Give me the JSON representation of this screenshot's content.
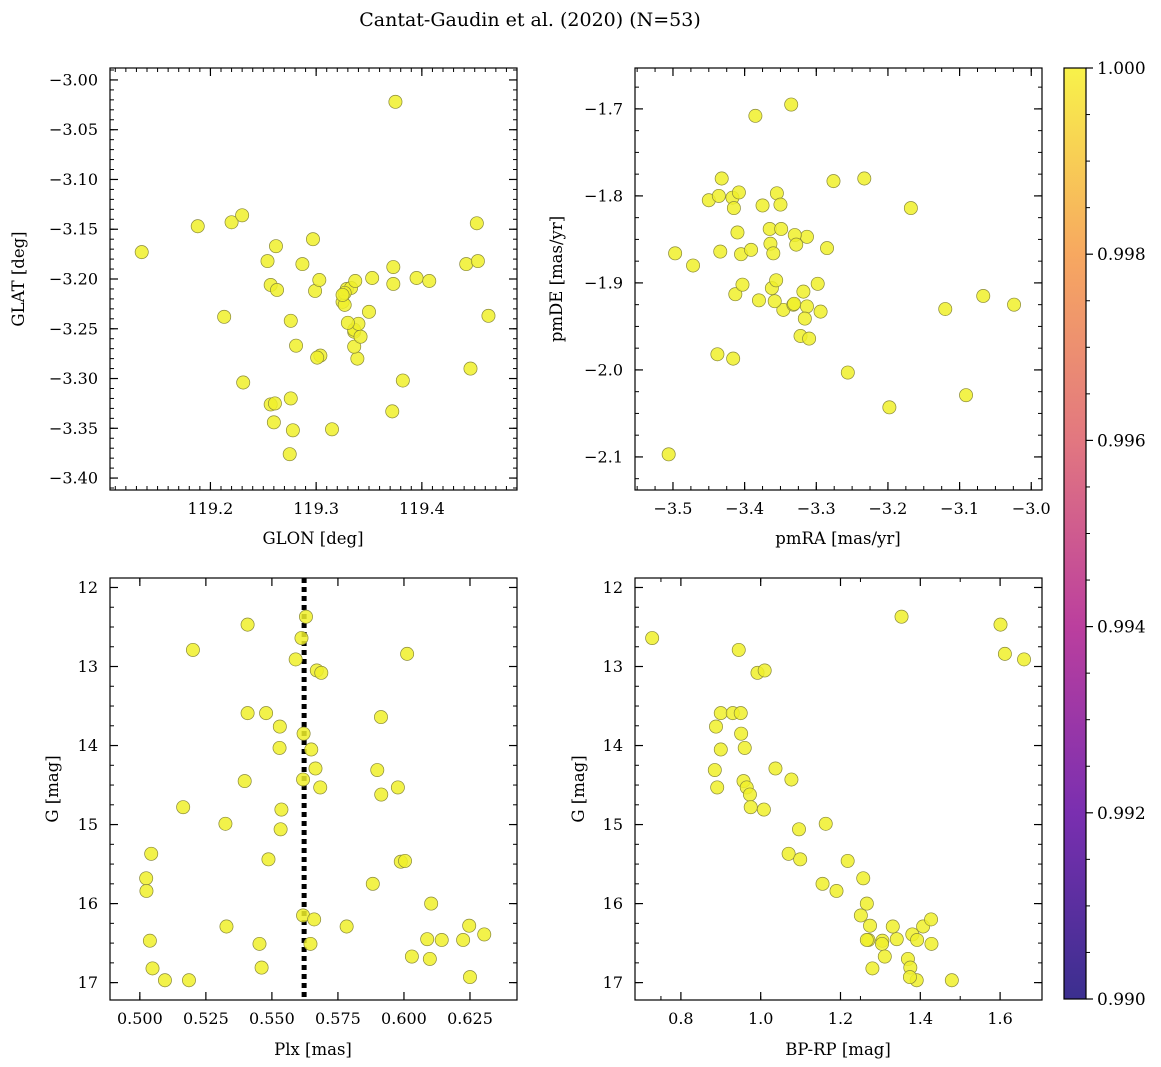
{
  "figure": {
    "title": "Cantat-Gaudin et al. (2020) (N=53)"
  },
  "colorbar": {
    "min": 0.99,
    "max": 1.0,
    "tick_labels": [
      "0.990",
      "0.992",
      "0.994",
      "0.996",
      "0.998",
      "1.000"
    ],
    "colormap": "plasma",
    "colors": [
      "#3b2f8f",
      "#7a2fb0",
      "#bb3f9e",
      "#e27780",
      "#f7a860",
      "#f8f24a"
    ]
  },
  "marker": {
    "fill": "#f0f02a",
    "edge": "#8a8a3a",
    "opacity": 0.85
  },
  "chart_data": [
    {
      "type": "scatter",
      "panel": "top-left",
      "xlabel": "GLON [deg]",
      "ylabel": "GLAT [deg]",
      "xlim": [
        119.105,
        119.49
      ],
      "ylim": [
        -3.412,
        -2.988
      ],
      "x_ticks": [
        119.2,
        119.3,
        119.4
      ],
      "x_tick_labels": [
        "119.2",
        "119.3",
        "119.4"
      ],
      "y_ticks": [
        -3.0,
        -3.05,
        -3.1,
        -3.15,
        -3.2,
        -3.25,
        -3.3,
        -3.35,
        -3.4
      ],
      "y_tick_labels": [
        "−3.00",
        "−3.05",
        "−3.10",
        "−3.15",
        "−3.20",
        "−3.25",
        "−3.30",
        "−3.35",
        "−3.40"
      ],
      "x": [
        119.135,
        119.188,
        119.22,
        119.23,
        119.262,
        119.213,
        119.254,
        119.257,
        119.263,
        119.297,
        119.287,
        119.299,
        119.325,
        119.329,
        119.333,
        119.337,
        119.327,
        119.336,
        119.353,
        119.373,
        119.373,
        119.395,
        119.407,
        119.442,
        119.453,
        119.452,
        119.463,
        119.446,
        119.375,
        119.382,
        119.372,
        119.315,
        119.304,
        119.301,
        119.339,
        119.336,
        119.336,
        119.342,
        119.34,
        119.35,
        119.33,
        119.303,
        119.276,
        119.281,
        119.276,
        119.26,
        119.257,
        119.231,
        119.278,
        119.275,
        119.327,
        119.261,
        119.325
      ],
      "y": [
        -3.173,
        -3.147,
        -3.143,
        -3.136,
        -3.167,
        -3.238,
        -3.182,
        -3.206,
        -3.211,
        -3.16,
        -3.185,
        -3.212,
        -3.223,
        -3.21,
        -3.209,
        -3.202,
        -3.226,
        -3.253,
        -3.199,
        -3.205,
        -3.188,
        -3.199,
        -3.202,
        -3.185,
        -3.182,
        -3.144,
        -3.237,
        -3.29,
        -3.022,
        -3.302,
        -3.333,
        -3.351,
        -3.277,
        -3.279,
        -3.28,
        -3.268,
        -3.251,
        -3.258,
        -3.245,
        -3.233,
        -3.244,
        -3.201,
        -3.242,
        -3.267,
        -3.32,
        -3.344,
        -3.326,
        -3.304,
        -3.352,
        -3.376,
        -3.214,
        -3.325,
        -3.216
      ]
    },
    {
      "type": "scatter",
      "panel": "top-right",
      "xlabel": "pmRA [mas/yr]",
      "ylabel": "pmDE [mas/yr]",
      "xlim": [
        -3.553,
        -2.985
      ],
      "ylim": [
        -2.138,
        -1.653
      ],
      "x_ticks": [
        -3.5,
        -3.4,
        -3.3,
        -3.2,
        -3.1,
        -3.0
      ],
      "x_tick_labels": [
        "−3.5",
        "−3.4",
        "−3.3",
        "−3.2",
        "−3.1",
        "−3.0"
      ],
      "y_ticks": [
        -1.7,
        -1.8,
        -1.9,
        -2.0,
        -2.1
      ],
      "y_tick_labels": [
        "−1.7",
        "−1.8",
        "−1.9",
        "−2.0",
        "−2.1"
      ],
      "x": [
        -3.385,
        -3.335,
        -3.233,
        -3.276,
        -3.168,
        -3.432,
        -3.45,
        -3.436,
        -3.417,
        -3.408,
        -3.355,
        -3.415,
        -3.35,
        -3.313,
        -3.41,
        -3.365,
        -3.33,
        -3.364,
        -3.328,
        -3.349,
        -3.36,
        -3.405,
        -3.391,
        -3.285,
        -3.497,
        -3.472,
        -3.434,
        -3.38,
        -3.362,
        -3.413,
        -3.318,
        -3.356,
        -3.346,
        -3.332,
        -3.313,
        -3.298,
        -3.294,
        -3.358,
        -3.316,
        -3.322,
        -3.12,
        -3.067,
        -3.024,
        -3.091,
        -3.438,
        -3.416,
        -3.256,
        -3.198,
        -3.506,
        -3.31,
        -3.403,
        -3.331,
        -3.375
      ],
      "y": [
        -1.708,
        -1.695,
        -1.78,
        -1.783,
        -1.814,
        -1.78,
        -1.805,
        -1.8,
        -1.802,
        -1.796,
        -1.797,
        -1.814,
        -1.81,
        -1.847,
        -1.842,
        -1.838,
        -1.845,
        -1.855,
        -1.856,
        -1.838,
        -1.866,
        -1.867,
        -1.862,
        -1.86,
        -1.866,
        -1.88,
        -1.864,
        -1.92,
        -1.906,
        -1.913,
        -1.91,
        -1.897,
        -1.931,
        -1.925,
        -1.927,
        -1.901,
        -1.933,
        -1.921,
        -1.941,
        -1.961,
        -1.93,
        -1.915,
        -1.925,
        -2.029,
        -1.982,
        -1.987,
        -2.003,
        -2.043,
        -2.097,
        -1.964,
        -1.902,
        -1.924,
        -1.811
      ]
    },
    {
      "type": "scatter",
      "panel": "bottom-left",
      "xlabel": "Plx [mas]",
      "ylabel": "G [mag]",
      "xlim": [
        0.4887,
        0.6428
      ],
      "ylim": [
        17.22,
        11.88
      ],
      "y_inverted": true,
      "vline": {
        "x": 0.5622,
        "style": "dotted"
      },
      "x_ticks": [
        0.5,
        0.525,
        0.55,
        0.575,
        0.6,
        0.625
      ],
      "x_tick_labels": [
        "0.500",
        "0.525",
        "0.550",
        "0.575",
        "0.600",
        "0.625"
      ],
      "y_ticks": [
        12,
        13,
        14,
        15,
        16,
        17
      ],
      "y_tick_labels": [
        "12",
        "13",
        "14",
        "15",
        "16",
        "17"
      ],
      "x": [
        0.5629,
        0.5612,
        0.5408,
        0.5201,
        0.559,
        0.567,
        0.5687,
        0.6012,
        0.5408,
        0.5478,
        0.553,
        0.5913,
        0.562,
        0.5529,
        0.5649,
        0.5665,
        0.5683,
        0.5618,
        0.5899,
        0.5397,
        0.5977,
        0.5914,
        0.5536,
        0.5164,
        0.5324,
        0.5533,
        0.5043,
        0.5024,
        0.5988,
        0.6004,
        0.5487,
        0.5882,
        0.5025,
        0.6103,
        0.5618,
        0.566,
        0.5328,
        0.5783,
        0.6247,
        0.6304,
        0.6224,
        0.6143,
        0.6088,
        0.5038,
        0.5646,
        0.5453,
        0.603,
        0.6098,
        0.5048,
        0.5461,
        0.5095,
        0.5186,
        0.625
      ],
      "y": [
        12.37,
        12.64,
        12.47,
        12.79,
        12.91,
        13.05,
        13.08,
        12.84,
        13.59,
        13.59,
        13.76,
        13.64,
        13.85,
        14.03,
        14.05,
        14.29,
        14.53,
        14.43,
        14.31,
        14.45,
        14.53,
        14.62,
        14.81,
        14.78,
        14.99,
        15.06,
        15.37,
        15.68,
        15.47,
        15.46,
        15.44,
        15.75,
        15.84,
        16.0,
        16.15,
        16.2,
        16.29,
        16.29,
        16.28,
        16.39,
        16.46,
        16.46,
        16.45,
        16.47,
        16.51,
        16.51,
        16.67,
        16.7,
        16.82,
        16.81,
        16.97,
        16.97,
        16.93
      ]
    },
    {
      "type": "scatter",
      "panel": "bottom-right",
      "xlabel": "BP-RP [mag]",
      "ylabel": "G [mag]",
      "xlim": [
        0.685,
        1.705
      ],
      "ylim": [
        17.22,
        11.88
      ],
      "y_inverted": true,
      "x_ticks": [
        0.8,
        1.0,
        1.2,
        1.4,
        1.6
      ],
      "x_tick_labels": [
        "0.8",
        "1.0",
        "1.2",
        "1.4",
        "1.6"
      ],
      "y_ticks": [
        12,
        13,
        14,
        15,
        16,
        17
      ],
      "y_tick_labels": [
        "12",
        "13",
        "14",
        "15",
        "16",
        "17"
      ],
      "x": [
        0.728,
        1.353,
        1.601,
        1.612,
        1.66,
        0.945,
        0.992,
        1.01,
        0.9,
        0.93,
        0.95,
        0.888,
        0.951,
        0.9,
        0.96,
        0.885,
        0.891,
        1.037,
        1.077,
        0.957,
        0.965,
        0.973,
        0.975,
        1.008,
        1.096,
        1.163,
        1.07,
        1.099,
        1.218,
        1.155,
        1.257,
        1.19,
        1.266,
        1.251,
        1.274,
        1.331,
        1.305,
        1.38,
        1.407,
        1.427,
        1.341,
        1.392,
        1.369,
        1.428,
        1.27,
        1.266,
        1.304,
        1.28,
        1.311,
        1.375,
        1.391,
        1.479,
        1.374
      ],
      "y": [
        12.64,
        12.37,
        12.47,
        12.84,
        12.91,
        12.79,
        13.08,
        13.05,
        13.59,
        13.59,
        13.59,
        13.76,
        13.85,
        14.05,
        14.03,
        14.31,
        14.53,
        14.29,
        14.43,
        14.45,
        14.53,
        14.62,
        14.78,
        14.81,
        15.06,
        14.99,
        15.37,
        15.44,
        15.46,
        15.75,
        15.68,
        15.84,
        16.0,
        16.15,
        16.28,
        16.29,
        16.47,
        16.39,
        16.29,
        16.2,
        16.45,
        16.46,
        16.7,
        16.51,
        16.46,
        16.46,
        16.51,
        16.82,
        16.67,
        16.81,
        16.97,
        16.97,
        16.93
      ]
    }
  ]
}
